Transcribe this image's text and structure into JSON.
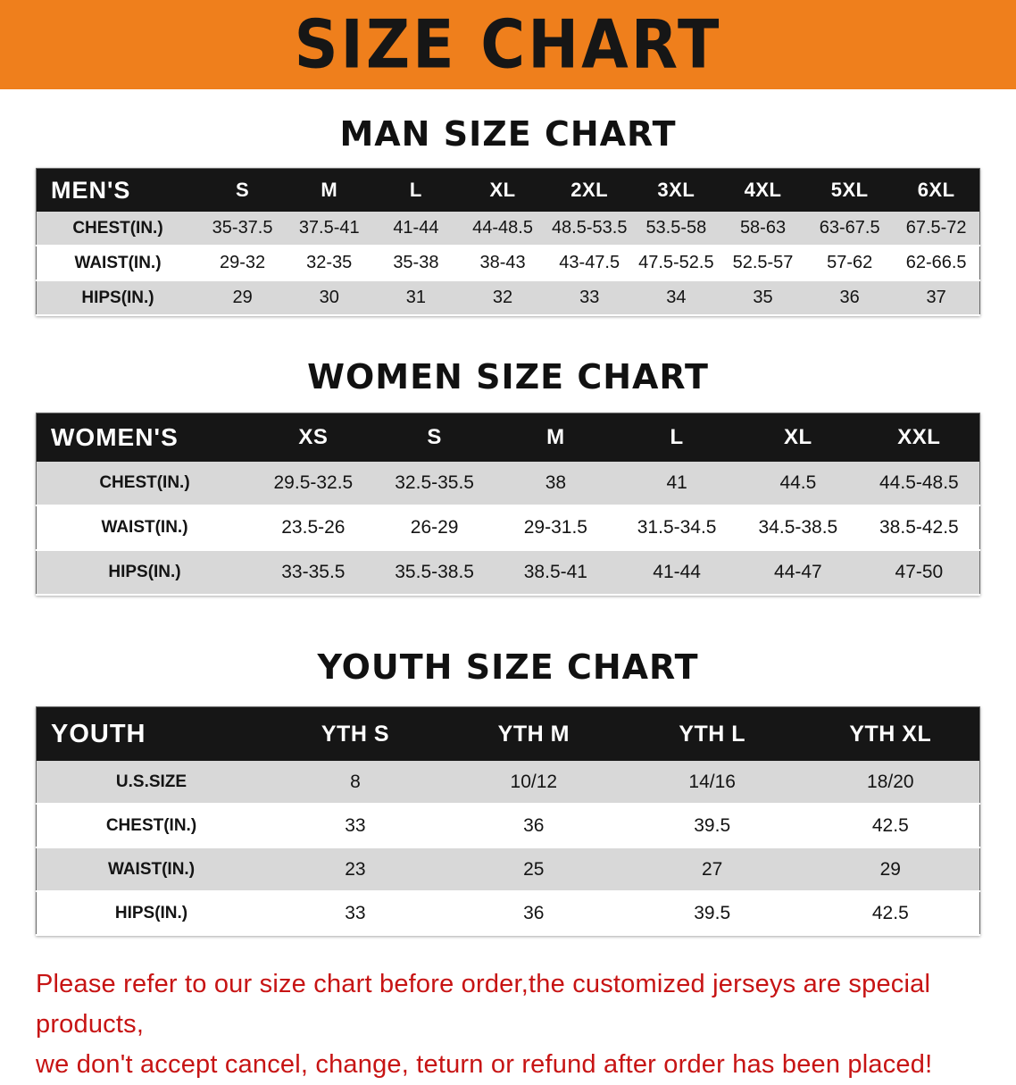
{
  "colors": {
    "banner-bg": "#ef7f1c",
    "header-bg": "#161616",
    "row-alt": "#d8d8d8",
    "disclaimer-red": "#c71414"
  },
  "banner": {
    "title": "SIZE CHART"
  },
  "sections": [
    {
      "heading": "MAN SIZE CHART",
      "table": {
        "header": [
          "MEN'S",
          "S",
          "M",
          "L",
          "XL",
          "2XL",
          "3XL",
          "4XL",
          "5XL",
          "6XL"
        ],
        "rows": [
          [
            "CHEST(IN.)",
            "35-37.5",
            "37.5-41",
            "41-44",
            "44-48.5",
            "48.5-53.5",
            "53.5-58",
            "58-63",
            "63-67.5",
            "67.5-72"
          ],
          [
            "WAIST(IN.)",
            "29-32",
            "32-35",
            "35-38",
            "38-43",
            "43-47.5",
            "47.5-52.5",
            "52.5-57",
            "57-62",
            "62-66.5"
          ],
          [
            "HIPS(IN.)",
            "29",
            "30",
            "31",
            "32",
            "33",
            "34",
            "35",
            "36",
            "37"
          ]
        ]
      }
    },
    {
      "heading": "WOMEN SIZE CHART",
      "table": {
        "header": [
          "WOMEN'S",
          "XS",
          "S",
          "M",
          "L",
          "XL",
          "XXL"
        ],
        "rows": [
          [
            "CHEST(IN.)",
            "29.5-32.5",
            "32.5-35.5",
            "38",
            "41",
            "44.5",
            "44.5-48.5"
          ],
          [
            "WAIST(IN.)",
            "23.5-26",
            "26-29",
            "29-31.5",
            "31.5-34.5",
            "34.5-38.5",
            "38.5-42.5"
          ],
          [
            "HIPS(IN.)",
            "33-35.5",
            "35.5-38.5",
            "38.5-41",
            "41-44",
            "44-47",
            "47-50"
          ]
        ]
      }
    },
    {
      "heading": "YOUTH SIZE CHART",
      "table": {
        "header": [
          "YOUTH",
          "YTH S",
          "YTH M",
          "YTH L",
          "YTH XL"
        ],
        "rows": [
          [
            "U.S.SIZE",
            "8",
            "10/12",
            "14/16",
            "18/20"
          ],
          [
            "CHEST(IN.)",
            "33",
            "36",
            "39.5",
            "42.5"
          ],
          [
            "WAIST(IN.)",
            "23",
            "25",
            "27",
            "29"
          ],
          [
            "HIPS(IN.)",
            "33",
            "36",
            "39.5",
            "42.5"
          ]
        ]
      }
    }
  ],
  "disclaimer": {
    "line1": "Please refer to our size chart before order,the customized jerseys are special products,",
    "line2": "we don't accept cancel, change, teturn or refund after order has been placed!"
  }
}
